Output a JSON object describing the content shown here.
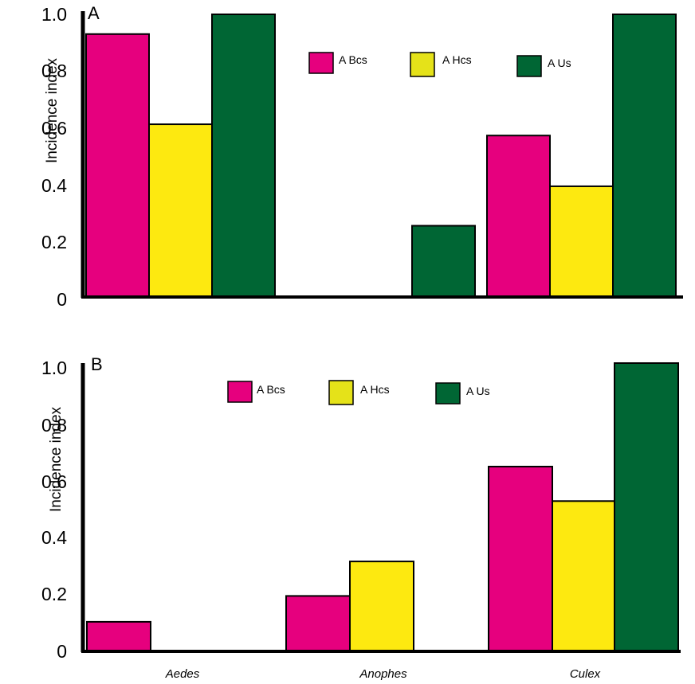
{
  "colors": {
    "A Bcs": "#e6007e",
    "A Hcs": "#fde910",
    "A Us": "#006634",
    "A Hcs_legend": "#e5e219"
  },
  "chart_data": [
    {
      "type": "bar",
      "panel_label": "A",
      "ylabel": "Incidence index",
      "xlabel": "",
      "ylim": [
        0,
        1.0
      ],
      "yticks": [
        "0",
        "0.2",
        "0.4",
        "0.6",
        "0.8",
        "1.0"
      ],
      "categories": [
        "Aedes",
        "Anophes",
        "Culex"
      ],
      "show_category_labels": false,
      "legend": [
        "A Bcs",
        "A Hcs",
        "A Us"
      ],
      "series": [
        {
          "name": "A Bcs",
          "values": [
            0.93,
            0.0,
            0.57
          ]
        },
        {
          "name": "A Hcs",
          "values": [
            0.61,
            0.0,
            0.39
          ]
        },
        {
          "name": "A Us",
          "values": [
            1.0,
            0.25,
            1.0
          ]
        }
      ]
    },
    {
      "type": "bar",
      "panel_label": "B",
      "ylabel": "Incidence index",
      "xlabel": "",
      "ylim": [
        0,
        1.0
      ],
      "yticks": [
        "0",
        "0.2",
        "0.4",
        "0.6",
        "0.8",
        "1.0"
      ],
      "categories": [
        "Aedes",
        "Anophes",
        "Culex"
      ],
      "show_category_labels": true,
      "legend": [
        "A Bcs",
        "A Hcs",
        "A Us"
      ],
      "series": [
        {
          "name": "A Bcs",
          "values": [
            0.1,
            0.19,
            0.64
          ]
        },
        {
          "name": "A Hcs",
          "values": [
            0.0,
            0.31,
            0.52
          ]
        },
        {
          "name": "A Us",
          "values": [
            0.0,
            0.0,
            1.0
          ]
        }
      ]
    }
  ]
}
